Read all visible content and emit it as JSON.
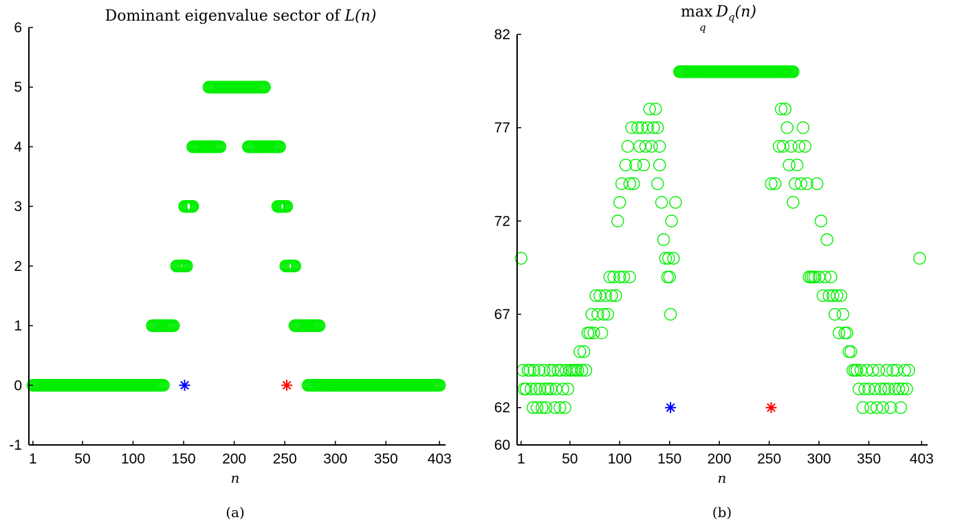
{
  "chart_data": [
    {
      "type": "scatter",
      "title_text": "Dominant eigenvalue sector of ",
      "title_math": "L(n)",
      "xlabel": "n",
      "caption": "(a)",
      "xlim": [
        -3,
        409
      ],
      "ylim": [
        -1,
        6
      ],
      "xticks": [
        1,
        50,
        100,
        150,
        200,
        250,
        300,
        350,
        403
      ],
      "yticks": [
        -1,
        0,
        1,
        2,
        3,
        4,
        5,
        6
      ],
      "marker_color": "#00ee00",
      "segments": [
        {
          "y": 0,
          "x_start": 1,
          "x_end": 130
        },
        {
          "y": 1,
          "x_start": 119,
          "x_end": 140
        },
        {
          "y": 2,
          "x_start": 143,
          "x_end": 153
        },
        {
          "y": 3,
          "x_start": 151,
          "x_end": 159
        },
        {
          "y": 4,
          "x_start": 159,
          "x_end": 186
        },
        {
          "y": 5,
          "x_start": 175,
          "x_end": 230
        },
        {
          "y": 4,
          "x_start": 214,
          "x_end": 245
        },
        {
          "y": 3,
          "x_start": 243,
          "x_end": 252
        },
        {
          "y": 2,
          "x_start": 251,
          "x_end": 260
        },
        {
          "y": 1,
          "x_start": 260,
          "x_end": 284
        },
        {
          "y": 0,
          "x_start": 273,
          "x_end": 403
        }
      ],
      "stars": [
        {
          "x": 151,
          "y": 0,
          "color": "#0000ff"
        },
        {
          "x": 252,
          "y": 0,
          "color": "#ff0000"
        }
      ]
    },
    {
      "type": "scatter",
      "title_math": "max_q D_q(n)",
      "xlabel": "n",
      "caption": "(b)",
      "xlim": [
        -3,
        409
      ],
      "ylim": [
        60,
        82
      ],
      "xticks": [
        1,
        50,
        100,
        150,
        200,
        250,
        300,
        350,
        403
      ],
      "yticks": [
        60,
        62,
        67,
        72,
        77,
        82
      ],
      "marker_color": "#00ee00",
      "points": [
        [
          1,
          70
        ],
        [
          3,
          64
        ],
        [
          4,
          63
        ],
        [
          6,
          63
        ],
        [
          8,
          64
        ],
        [
          10,
          64
        ],
        [
          11,
          63
        ],
        [
          13,
          62
        ],
        [
          14,
          64
        ],
        [
          16,
          63
        ],
        [
          17,
          62
        ],
        [
          19,
          64
        ],
        [
          20,
          63
        ],
        [
          22,
          62
        ],
        [
          24,
          64
        ],
        [
          25,
          63
        ],
        [
          26,
          62
        ],
        [
          28,
          63
        ],
        [
          30,
          64
        ],
        [
          31,
          63
        ],
        [
          33,
          64
        ],
        [
          35,
          62
        ],
        [
          36,
          63
        ],
        [
          38,
          64
        ],
        [
          40,
          62
        ],
        [
          41,
          64
        ],
        [
          43,
          63
        ],
        [
          45,
          62
        ],
        [
          46,
          64
        ],
        [
          48,
          63
        ],
        [
          50,
          64
        ],
        [
          52,
          64
        ],
        [
          54,
          64
        ],
        [
          56,
          64
        ],
        [
          58,
          64
        ],
        [
          60,
          65
        ],
        [
          62,
          64
        ],
        [
          64,
          65
        ],
        [
          66,
          64
        ],
        [
          68,
          66
        ],
        [
          70,
          66
        ],
        [
          72,
          67
        ],
        [
          74,
          66
        ],
        [
          76,
          68
        ],
        [
          78,
          67
        ],
        [
          80,
          68
        ],
        [
          82,
          66
        ],
        [
          84,
          67
        ],
        [
          86,
          68
        ],
        [
          88,
          67
        ],
        [
          90,
          69
        ],
        [
          92,
          68
        ],
        [
          94,
          69
        ],
        [
          96,
          68
        ],
        [
          98,
          72
        ],
        [
          100,
          73
        ],
        [
          100,
          69
        ],
        [
          102,
          74
        ],
        [
          104,
          69
        ],
        [
          106,
          75
        ],
        [
          108,
          76
        ],
        [
          110,
          74
        ],
        [
          110,
          69
        ],
        [
          112,
          77
        ],
        [
          114,
          74
        ],
        [
          116,
          75
        ],
        [
          118,
          77
        ],
        [
          120,
          76
        ],
        [
          122,
          77
        ],
        [
          124,
          75
        ],
        [
          126,
          76
        ],
        [
          128,
          77
        ],
        [
          130,
          78
        ],
        [
          132,
          76
        ],
        [
          134,
          77
        ],
        [
          136,
          78
        ],
        [
          138,
          77
        ],
        [
          138,
          74
        ],
        [
          140,
          76
        ],
        [
          140,
          75
        ],
        [
          142,
          73
        ],
        [
          144,
          71
        ],
        [
          146,
          70
        ],
        [
          148,
          69
        ],
        [
          149,
          70
        ],
        [
          150,
          69
        ],
        [
          151,
          67
        ],
        [
          152,
          72
        ],
        [
          154,
          70
        ],
        [
          156,
          73
        ],
        [
          160,
          80
        ],
        [
          170,
          80
        ],
        [
          180,
          80
        ],
        [
          190,
          80
        ],
        [
          200,
          80
        ],
        [
          210,
          80
        ],
        [
          220,
          80
        ],
        [
          230,
          80
        ],
        [
          240,
          80
        ],
        [
          250,
          80
        ],
        [
          258,
          80
        ],
        [
          265,
          80
        ],
        [
          252,
          74
        ],
        [
          256,
          74
        ],
        [
          260,
          76
        ],
        [
          262,
          78
        ],
        [
          264,
          76
        ],
        [
          266,
          78
        ],
        [
          268,
          77
        ],
        [
          270,
          75
        ],
        [
          272,
          76
        ],
        [
          274,
          73
        ],
        [
          276,
          74
        ],
        [
          278,
          75
        ],
        [
          280,
          76
        ],
        [
          282,
          74
        ],
        [
          284,
          77
        ],
        [
          286,
          76
        ],
        [
          288,
          74
        ],
        [
          290,
          69
        ],
        [
          292,
          69
        ],
        [
          294,
          69
        ],
        [
          296,
          69
        ],
        [
          298,
          74
        ],
        [
          300,
          69
        ],
        [
          302,
          72
        ],
        [
          304,
          68
        ],
        [
          306,
          69
        ],
        [
          308,
          71
        ],
        [
          310,
          68
        ],
        [
          312,
          69
        ],
        [
          314,
          68
        ],
        [
          316,
          67
        ],
        [
          318,
          68
        ],
        [
          320,
          66
        ],
        [
          322,
          68
        ],
        [
          324,
          67
        ],
        [
          326,
          66
        ],
        [
          328,
          66
        ],
        [
          330,
          65
        ],
        [
          332,
          65
        ],
        [
          334,
          64
        ],
        [
          336,
          64
        ],
        [
          338,
          64
        ],
        [
          340,
          63
        ],
        [
          342,
          64
        ],
        [
          344,
          62
        ],
        [
          346,
          63
        ],
        [
          348,
          64
        ],
        [
          350,
          63
        ],
        [
          352,
          62
        ],
        [
          354,
          64
        ],
        [
          356,
          63
        ],
        [
          358,
          62
        ],
        [
          360,
          64
        ],
        [
          362,
          63
        ],
        [
          364,
          62
        ],
        [
          366,
          63
        ],
        [
          368,
          64
        ],
        [
          370,
          63
        ],
        [
          372,
          62
        ],
        [
          374,
          64
        ],
        [
          376,
          63
        ],
        [
          378,
          64
        ],
        [
          380,
          63
        ],
        [
          382,
          62
        ],
        [
          384,
          63
        ],
        [
          386,
          64
        ],
        [
          388,
          63
        ],
        [
          390,
          64
        ],
        [
          401,
          70
        ]
      ],
      "stars": [
        {
          "x": 151,
          "y": 62,
          "color": "#0000ff"
        },
        {
          "x": 252,
          "y": 62,
          "color": "#ff0000"
        }
      ]
    }
  ]
}
